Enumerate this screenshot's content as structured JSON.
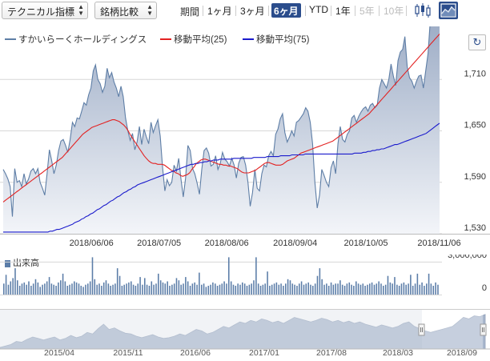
{
  "toolbar": {
    "indicator_select": "テクニカル指標",
    "compare_select": "銘柄比較",
    "period_label": "期間",
    "periods": [
      "1ヶ月",
      "3ヶ月",
      "6ヶ月",
      "YTD",
      "1年",
      "5年",
      "10年"
    ],
    "active_period": "6ヶ月",
    "disabled_periods": [
      "5年",
      "10年"
    ],
    "chart_type_icons": [
      "candlestick-icon",
      "area-chart-icon"
    ],
    "active_chart_type": "area-chart-icon"
  },
  "legend": {
    "price": "すかいらーくホールディングス",
    "ma25": "移動平均(25)",
    "ma75": "移動平均(75)"
  },
  "colors": {
    "price_line": "#5e7ea6",
    "price_fill_top": "#9aaac4",
    "price_fill_bottom": "#f3f5f9",
    "ma25": "#e32222",
    "ma75": "#1a1acc",
    "volume": "#5b7da8",
    "navigator_fill": "#a8b6cc",
    "active_button": "#2b4d8c"
  },
  "volume_label": "出来高",
  "chart_data": [
    {
      "type": "area",
      "name": "price-chart",
      "x_tick_labels": [
        "2018/06/06",
        "2018/07/05",
        "2018/08/06",
        "2018/09/04",
        "2018/10/05",
        "2018/11/06"
      ],
      "y_tick_labels": [
        "1,710",
        "1,650",
        "1,590",
        "1,530"
      ],
      "ylim": [
        1530,
        1770
      ],
      "grid": true,
      "legend_position": "top-left",
      "series": [
        {
          "name": "すかいらーくホールディングス",
          "values": [
            1605,
            1600,
            1594,
            1585,
            1550,
            1606,
            1590,
            1592,
            1585,
            1600,
            1588,
            1594,
            1603,
            1606,
            1600,
            1606,
            1590,
            1583,
            1575,
            1600,
            1628,
            1615,
            1600,
            1610,
            1627,
            1638,
            1640,
            1633,
            1625,
            1640,
            1660,
            1655,
            1665,
            1664,
            1673,
            1683,
            1680,
            1692,
            1700,
            1720,
            1727,
            1710,
            1705,
            1695,
            1702,
            1723,
            1712,
            1718,
            1707,
            1700,
            1690,
            1702,
            1690,
            1665,
            1650,
            1639,
            1647,
            1628,
            1637,
            1655,
            1634,
            1652,
            1643,
            1635,
            1660,
            1648,
            1656,
            1663,
            1644,
            1608,
            1580,
            1593,
            1586,
            1590,
            1610,
            1603,
            1618,
            1594,
            1573,
            1595,
            1633,
            1627,
            1606,
            1600,
            1589,
            1576,
            1605,
            1627,
            1630,
            1624,
            1609,
            1611,
            1621,
            1605,
            1612,
            1625,
            1617,
            1614,
            1609,
            1618,
            1610,
            1595,
            1612,
            1619,
            1620,
            1610,
            1590,
            1562,
            1578,
            1605,
            1583,
            1580,
            1600,
            1610,
            1608,
            1621,
            1626,
            1621,
            1646,
            1652,
            1664,
            1670,
            1648,
            1637,
            1643,
            1650,
            1644,
            1660,
            1662,
            1666,
            1670,
            1677,
            1673,
            1660,
            1635,
            1590,
            1560,
            1575,
            1605,
            1598,
            1590,
            1585,
            1607,
            1615,
            1600,
            1635,
            1655,
            1640,
            1637,
            1646,
            1650,
            1665,
            1668,
            1660,
            1667,
            1672,
            1676,
            1678,
            1673,
            1680,
            1682,
            1677,
            1680,
            1700,
            1710,
            1705,
            1700,
            1710,
            1728,
            1714,
            1703,
            1732,
            1742,
            1745,
            1760,
            1725,
            1712,
            1708,
            1700,
            1708,
            1714,
            1715,
            1700,
            1720,
            1740,
            1780,
            1775,
            1778,
            1783,
            1786
          ]
        },
        {
          "name": "移動平均(25)",
          "values": [
            1567,
            1569,
            1571,
            1573,
            1575,
            1577,
            1579,
            1581,
            1583,
            1585,
            1587,
            1589,
            1591,
            1593,
            1595,
            1597,
            1599,
            1601,
            1603,
            1605,
            1607,
            1609,
            1611,
            1613,
            1615,
            1617,
            1619,
            1622,
            1625,
            1628,
            1631,
            1634,
            1637,
            1640,
            1643,
            1646,
            1648,
            1650,
            1652,
            1654,
            1655,
            1656,
            1657,
            1658,
            1659,
            1660,
            1661,
            1662,
            1663,
            1663,
            1662,
            1661,
            1659,
            1657,
            1654,
            1650,
            1645,
            1641,
            1637,
            1633,
            1629,
            1625,
            1621,
            1618,
            1615,
            1613,
            1612,
            1612,
            1611,
            1611,
            1611,
            1610,
            1608,
            1606,
            1604,
            1603,
            1601,
            1600,
            1598,
            1597,
            1598,
            1599,
            1601,
            1605,
            1608,
            1612,
            1614,
            1616,
            1617,
            1617,
            1616,
            1615,
            1614,
            1613,
            1612,
            1611,
            1611,
            1610,
            1610,
            1609,
            1609,
            1608,
            1607,
            1606,
            1604,
            1602,
            1601,
            1601,
            1601,
            1602,
            1603,
            1604,
            1606,
            1608,
            1610,
            1612,
            1613,
            1613,
            1612,
            1611,
            1610,
            1610,
            1610,
            1611,
            1613,
            1615,
            1616,
            1617,
            1618,
            1620,
            1622,
            1624,
            1625,
            1626,
            1627,
            1628,
            1629,
            1630,
            1631,
            1632,
            1633,
            1634,
            1635,
            1636,
            1637,
            1638,
            1640,
            1642,
            1644,
            1646,
            1648,
            1650,
            1652,
            1654,
            1656,
            1658,
            1660,
            1662,
            1664,
            1666,
            1668,
            1670,
            1673,
            1676,
            1679,
            1682,
            1685,
            1688,
            1691,
            1694,
            1697,
            1700,
            1703,
            1706,
            1709,
            1712,
            1715,
            1718,
            1721,
            1724,
            1727,
            1730,
            1733,
            1736,
            1739,
            1742,
            1745,
            1748,
            1751,
            1754,
            1757,
            1760,
            1763
          ]
        },
        {
          "name": "移動平均(75)",
          "values": [
            1532,
            1532,
            1532,
            1532,
            1532,
            1532,
            1532,
            1532,
            1532,
            1532,
            1532,
            1532,
            1532,
            1532,
            1532,
            1532,
            1532,
            1532,
            1532,
            1532,
            1532,
            1533,
            1533,
            1534,
            1535,
            1535,
            1536,
            1537,
            1538,
            1539,
            1540,
            1541,
            1543,
            1544,
            1545,
            1547,
            1548,
            1550,
            1551,
            1553,
            1554,
            1556,
            1558,
            1559,
            1561,
            1563,
            1564,
            1566,
            1568,
            1569,
            1571,
            1573,
            1574,
            1576,
            1578,
            1579,
            1581,
            1582,
            1584,
            1585,
            1587,
            1588,
            1589,
            1590,
            1591,
            1592,
            1593,
            1594,
            1595,
            1596,
            1597,
            1598,
            1599,
            1600,
            1601,
            1602,
            1603,
            1604,
            1605,
            1606,
            1607,
            1608,
            1609,
            1610,
            1611,
            1611,
            1612,
            1612,
            1613,
            1613,
            1614,
            1614,
            1615,
            1615,
            1616,
            1616,
            1616,
            1617,
            1617,
            1617,
            1617,
            1617,
            1617,
            1618,
            1618,
            1618,
            1618,
            1618,
            1618,
            1618,
            1618,
            1618,
            1619,
            1619,
            1619,
            1619,
            1619,
            1619,
            1620,
            1620,
            1620,
            1620,
            1620,
            1620,
            1621,
            1621,
            1621,
            1621,
            1621,
            1622,
            1622,
            1622,
            1622,
            1622,
            1622,
            1623,
            1623,
            1623,
            1623,
            1623,
            1623,
            1623,
            1623,
            1623,
            1623,
            1623,
            1623,
            1623,
            1623,
            1623,
            1623,
            1623,
            1623,
            1623,
            1623,
            1623,
            1623,
            1624,
            1624,
            1624,
            1624,
            1625,
            1625,
            1626,
            1626,
            1627,
            1627,
            1628,
            1628,
            1629,
            1629,
            1630,
            1631,
            1632,
            1633,
            1634,
            1634,
            1635,
            1636,
            1637,
            1638,
            1639,
            1640,
            1641,
            1642,
            1643,
            1644,
            1645,
            1646,
            1647,
            1649,
            1651,
            1653,
            1655,
            1657,
            1659
          ]
        }
      ]
    },
    {
      "type": "bar",
      "name": "volume-chart",
      "y_tick_labels": [
        "3,000,000",
        "0"
      ],
      "ylim": [
        0,
        3500000
      ],
      "series": [
        {
          "name": "出来高",
          "values": [
            1000000,
            1800000,
            900000,
            1200000,
            1500000,
            2400000,
            1300000,
            800000,
            1000000,
            1100000,
            900000,
            1200000,
            800000,
            1000000,
            1400000,
            1100000,
            700000,
            900000,
            1000000,
            1200000,
            1600000,
            1000000,
            900000,
            800000,
            1100000,
            1300000,
            1900000,
            1200000,
            800000,
            900000,
            1000000,
            1200000,
            1100000,
            1000000,
            800000,
            700000,
            900000,
            1000000,
            1200000,
            3400000,
            1400000,
            900000,
            1000000,
            800000,
            1100000,
            1300000,
            1000000,
            800000,
            900000,
            1000000,
            2400000,
            1700000,
            800000,
            900000,
            1000000,
            1100000,
            1200000,
            900000,
            800000,
            1000000,
            1600000,
            900000,
            1500000,
            900000,
            800000,
            1200000,
            900000,
            1000000,
            1900000,
            1300000,
            1100000,
            1000000,
            1200000,
            800000,
            900000,
            1000000,
            1500000,
            1300000,
            900000,
            1000000,
            1600000,
            1200000,
            800000,
            1000000,
            1100000,
            900000,
            2000000,
            900000,
            1000000,
            700000,
            800000,
            900000,
            1100000,
            1000000,
            800000,
            900000,
            1000000,
            1200000,
            1000000,
            3400000,
            1200000,
            900000,
            800000,
            1000000,
            900000,
            1100000,
            1000000,
            800000,
            900000,
            1000000,
            1300000,
            3400000,
            1000000,
            800000,
            900000,
            1000000,
            2100000,
            800000,
            900000,
            1000000,
            1100000,
            900000,
            1000000,
            800000,
            1000000,
            1400000,
            1300000,
            1000000,
            900000,
            800000,
            1000000,
            1200000,
            900000,
            1000000,
            1100000,
            900000,
            800000,
            1000000,
            1700000,
            2400000,
            1400000,
            900000,
            1000000,
            800000,
            1100000,
            900000,
            1000000,
            1000000,
            1300000,
            900000,
            800000,
            1000000,
            1100000,
            900000,
            800000,
            1200000,
            1000000,
            900000,
            1000000,
            800000,
            900000,
            1000000,
            1100000,
            900000,
            1000000,
            1200000,
            1000000,
            800000,
            900000,
            1700000,
            1100000,
            1000000,
            1600000,
            900000,
            800000,
            1000000,
            1100000,
            900000,
            1000000,
            1800000,
            800000,
            1000000,
            1900000,
            900000,
            1100000,
            800000,
            1000000,
            1900000,
            1000000,
            800000,
            1100000,
            900000
          ]
        }
      ]
    },
    {
      "type": "area",
      "name": "navigator-chart",
      "x_tick_labels": [
        "2015/04",
        "2015/11",
        "2016/06",
        "2017/01",
        "2017/08",
        "2018/03",
        "2018/09"
      ],
      "series": [
        {
          "name": "navigator",
          "values": [
            2,
            4,
            6,
            10,
            9,
            13,
            16,
            14,
            12,
            14,
            16,
            12,
            14,
            18,
            15,
            17,
            22,
            20,
            27,
            33,
            26,
            28,
            24,
            21,
            20,
            17,
            15,
            17,
            19,
            16,
            14,
            15,
            17,
            20,
            18,
            22,
            26,
            24,
            20,
            22,
            26,
            30,
            28,
            32,
            36,
            34,
            38,
            36,
            40,
            38,
            35,
            37,
            34,
            38,
            42,
            40,
            38,
            36,
            38,
            41,
            39,
            36,
            38,
            35,
            37,
            34,
            36,
            33,
            31,
            29,
            32,
            30,
            28,
            30,
            34,
            36,
            30,
            27,
            24,
            22,
            24,
            26,
            28,
            30,
            36,
            42,
            40,
            44,
            43,
            46
          ]
        }
      ]
    }
  ]
}
